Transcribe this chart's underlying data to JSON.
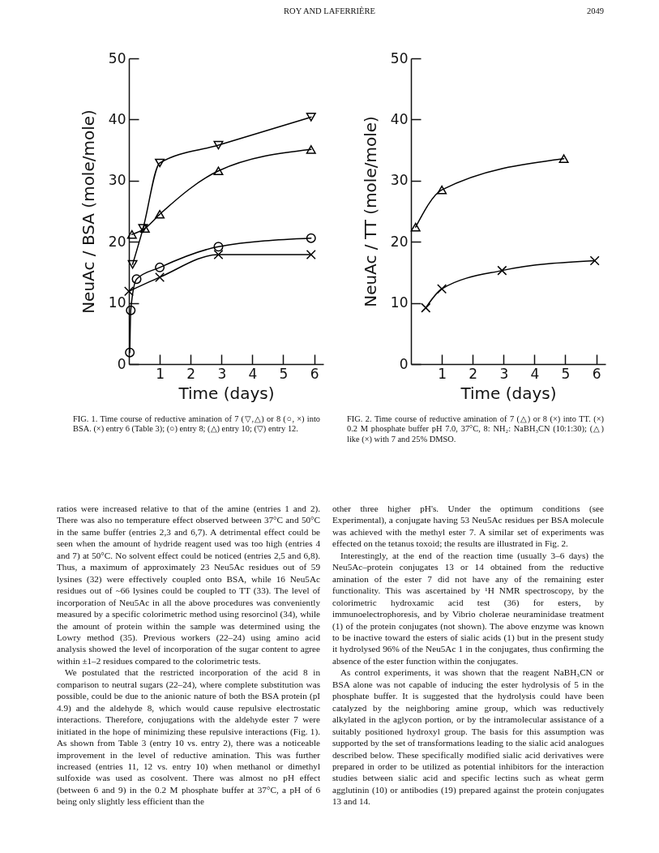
{
  "chart_data": [
    {
      "type": "line",
      "xlabel": "Time (days)",
      "ylabel": "NeuAc / BSA  (mole/mole)",
      "xlim": [
        0,
        6.3
      ],
      "ylim": [
        0,
        50
      ],
      "xticks": [
        1,
        2,
        3,
        4,
        5,
        6
      ],
      "yticks": [
        0,
        10,
        20,
        30,
        40,
        50
      ],
      "line_style": "solid",
      "series": [
        {
          "color": "#000000",
          "marker": "triangle-down",
          "x": [
            0.12,
            0.46,
            1,
            2.9,
            5.9
          ],
          "values": [
            16.3,
            22.2,
            32.9,
            35.8,
            40.4
          ]
        },
        {
          "color": "#000000",
          "marker": "triangle",
          "x": [
            0.1,
            0.52,
            1,
            2.9,
            5.9
          ],
          "values": [
            21.2,
            22.2,
            24.5,
            31.6,
            35.1
          ]
        },
        {
          "color": "#000000",
          "marker": "circle",
          "x": [
            0.03,
            0.06,
            0.25,
            1,
            2.9,
            5.9
          ],
          "values": [
            1.9,
            8.8,
            13.9,
            15.8,
            19.2,
            20.6
          ]
        },
        {
          "color": "#000000",
          "marker": "cross",
          "x": [
            0,
            1,
            2.9,
            5.9
          ],
          "values": [
            11.9,
            14.2,
            17.9,
            17.9
          ]
        }
      ],
      "annotations": [
        "ROY AND LAFERRIÈRE",
        "FIG. 1. Time course of reductive amination of 7 (▽,△) or 8 (○, ×) into BSA. (×) entry 6 (Table 3); (○) entry 8; (△) entry 10; (▽) entry 12.",
        "ratios were increased relative to that of the amine (entries 1 and 2). There was also no temperature effect observed between 37°C and 50°C in the same buffer (entries 2,3 and 6,7). A detrimental effect could be seen when the amount of hydride reagent used was too high (entries 4 and 7) at 50°C. No solvent effect could be noticed (entries 2,5 and 6,8). Thus, a maximum of approximately 23 Neu5Ac residues out of 59 lysines (32) were effectively coupled onto BSA, while 16 Neu5Ac residues out of ~66 lysines could be coupled to TT (33). The level of incorporation of Neu5Ac in all the above procedures was conveniently measured by a specific colorimetric method using resorcinol (34), while the amount of protein within the sample was determined using the Lowry method (35). Previous workers (22–24) using amino acid analysis showed the level of incorporation of the sugar content to agree within ±1–2 residues compared to the colorimetric tests.\nWe postulated that the restricted incorporation of the acid 8 in comparison to neutral sugars (22–24), where complete substitution was possible, could be due to the anionic nature of both the BSA protein (pI 4.9) and the aldehyde 8, which would cause repulsive electrostatic interactions. Therefore, conjugations with the aldehyde ester 7 were initiated in the hope of minimizing these repulsive interactions (Fig. 1). As shown from Table 3 (entry 10 vs. entry 2), there was a noticeable improvement in the level of reductive amination. This was further increased (entries 11, 12 vs. entry 10) when methanol or dimethyl sulfoxide was used as cosolvent. There was almost no pH effect (between 6 and 9) in the 0.2 M phosphate buffer at 37°C, a pH of 6 being only slightly less efficient than the"
      ]
    },
    {
      "type": "line",
      "xlabel": "Time (days)",
      "ylabel": "NeuAc / TT (mole/mole)",
      "xlim": [
        0,
        6.3
      ],
      "ylim": [
        0,
        50
      ],
      "xticks": [
        1,
        2,
        3,
        4,
        5,
        6
      ],
      "yticks": [
        0,
        10,
        20,
        30,
        40,
        50
      ],
      "line_style": "solid",
      "series": [
        {
          "color": "#000000",
          "marker": "triangle",
          "x": [
            0.15,
            1,
            4.95
          ],
          "values": [
            22.4,
            28.5,
            33.6
          ]
        },
        {
          "color": "#000000",
          "marker": "cross",
          "x": [
            0.48,
            1,
            2.95,
            5.95
          ],
          "values": [
            9.2,
            12.3,
            15.3,
            16.9
          ]
        }
      ],
      "annotations": [
        "2049",
        "FIG. 2. Time course of reductive amination of 7 (△) or 8 (×) into TT. (×) 0.2 M phosphate buffer pH 7.0, 37°C, 8: NH₂: NaBH₃CN (10:1:30); (△) like (×) with 7 and 25% DMSO.",
        "other three higher pH's. Under the optimum conditions (see Experimental), a conjugate having 53 Neu5Ac residues per BSA molecule was achieved with the methyl ester 7. A similar set of experiments was effected on the tetanus toxoid; the results are illustrated in Fig. 2.\nInterestingly, at the end of the reaction time (usually 3–6 days) the Neu5Ac–protein conjugates 13 or 14 obtained from the reductive amination of the ester 7 did not have any of the remaining ester functionality. This was ascertained by ¹H NMR spectroscopy, by the colorimetric hydroxamic acid test (36) for esters, by immunoelectrophoresis, and by Vibrio cholerae neuraminidase treatment (1) of the protein conjugates (not shown). The above enzyme was known to be inactive toward the esters of sialic acids (1) but in the present study it hydrolysed 96% of the Neu5Ac 1 in the conjugates, thus confirming the absence of the ester function within the conjugates.\nAs control experiments, it was shown that the reagent NaBH₃CN or BSA alone was not capable of inducing the ester hydrolysis of 5 in the phosphate buffer. It is suggested that the hydrolysis could have been catalyzed by the neighboring amine group, which was reductively alkylated in the aglycon portion, or by the intramolecular assistance of a suitably positioned hydroxyl group. The basis for this assumption was supported by the set of transformations leading to the sialic acid analogues described below. These specifically modified sialic acid derivatives were prepared in order to be utilized as potential inhibitors for the interaction studies between sialic acid and specific lectins such as wheat germ agglutinin (10) or antibodies (19) prepared against the protein conjugates 13 and 14."
      ]
    }
  ]
}
